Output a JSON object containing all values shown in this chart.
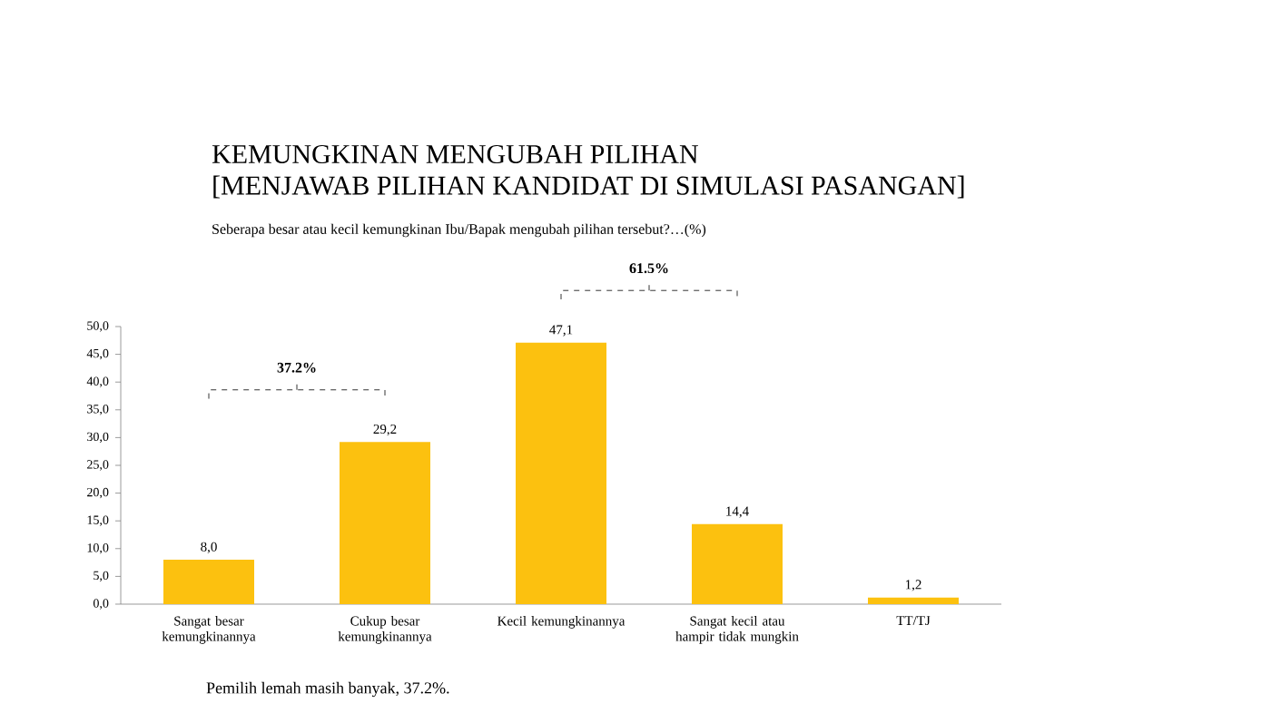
{
  "chart_data": {
    "type": "bar",
    "title": "KEMUNGKINAN MENGUBAH PILIHAN",
    "subtitle": "[MENJAWAB PILIHAN KANDIDAT DI SIMULASI PASANGAN]",
    "annotations": [
      "Seberapa besar atau kecil kemungkinan Ibu/Bapak mengubah pilihan tersebut?…(%)",
      "37.2%",
      "61.5%",
      "Pemilih lemah masih banyak, 37.2%."
    ],
    "categories": [
      "Sangat besar kemungkinannya",
      "Cukup besar kemungkinannya",
      "Kecil kemungkinannya",
      "Sangat kecil atau hampir tidak mungkin",
      "TT/TJ"
    ],
    "values": [
      8.0,
      29.2,
      47.1,
      14.4,
      1.2
    ],
    "value_labels": [
      "8,0",
      "29,2",
      "47,1",
      "14,4",
      "1,2"
    ],
    "color": "#fcc10f",
    "ylim": [
      0,
      50
    ],
    "yticks": [
      {
        "value": 0,
        "label": "0,0"
      },
      {
        "value": 5,
        "label": "5,0"
      },
      {
        "value": 10,
        "label": "10,0"
      },
      {
        "value": 15,
        "label": "15,0"
      },
      {
        "value": 20,
        "label": "20,0"
      },
      {
        "value": 25,
        "label": "25,0"
      },
      {
        "value": 30,
        "label": "30,0"
      },
      {
        "value": 35,
        "label": "35,0"
      },
      {
        "value": 40,
        "label": "40,0"
      },
      {
        "value": 45,
        "label": "45,0"
      },
      {
        "value": 50,
        "label": "50,0"
      }
    ]
  }
}
